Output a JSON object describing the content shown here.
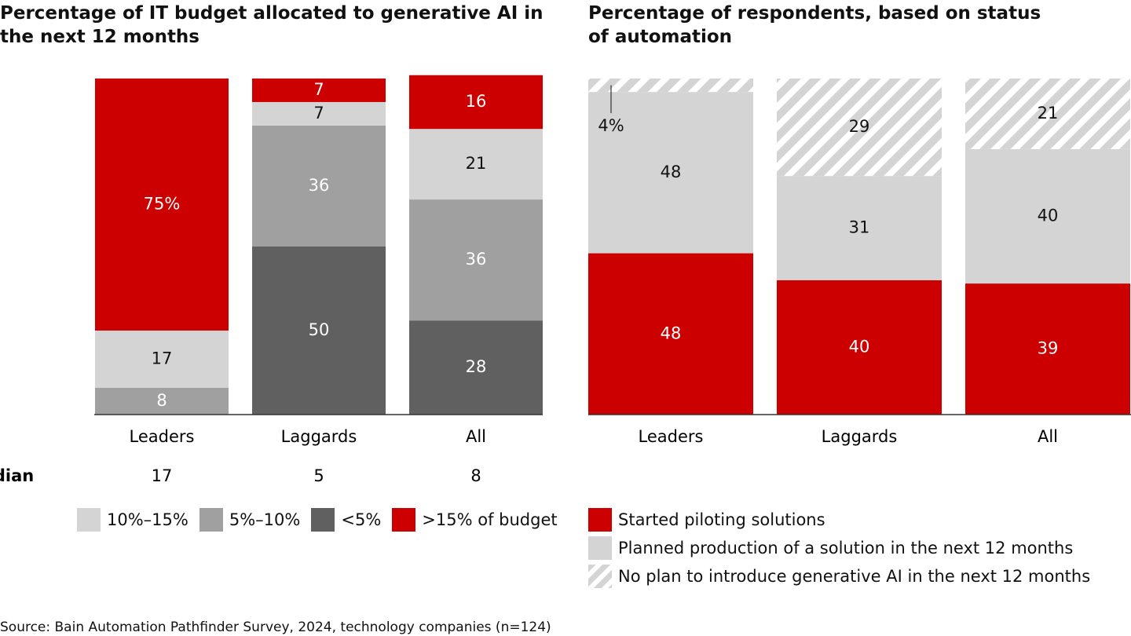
{
  "chart_data": [
    {
      "type": "bar",
      "stacked": true,
      "title": "Percentage of IT budget allocated to generative AI in the next 12 months",
      "categories": [
        "Leaders",
        "Laggards",
        "All"
      ],
      "ylim": [
        0,
        100
      ],
      "series": [
        {
          "name": "10%–15%",
          "color": "#d4d4d4",
          "values": [
            17,
            7,
            21
          ]
        },
        {
          "name": "5%–10%",
          "color": "#a0a0a0",
          "values": [
            8,
            36,
            36
          ]
        },
        {
          "name": "<5%",
          "color": "#606060",
          "values": [
            0,
            50,
            28
          ]
        },
        {
          "name": ">15% of budget",
          "color": "#cc0000",
          "values": [
            75,
            7,
            16
          ],
          "value_labels": [
            "75%",
            "7",
            "16"
          ]
        }
      ],
      "median": {
        "label": "Median",
        "values": [
          17,
          5,
          8
        ]
      }
    },
    {
      "type": "bar",
      "stacked": true,
      "title": "Percentage of respondents, based on status of automation",
      "categories": [
        "Leaders",
        "Laggards",
        "All"
      ],
      "ylim": [
        0,
        100
      ],
      "series": [
        {
          "name": "Started piloting solutions",
          "color": "#cc0000",
          "values": [
            48,
            40,
            39
          ]
        },
        {
          "name": "Planned production of a solution in the next 12 months",
          "color": "#d4d4d4",
          "values": [
            48,
            31,
            40
          ]
        },
        {
          "name": "No plan to introduce generative AI in the next 12 months",
          "color": "#d4d4d4",
          "pattern": "hatch",
          "values": [
            4,
            29,
            21
          ],
          "value_labels": [
            "4%",
            "29",
            "21"
          ]
        }
      ]
    }
  ],
  "source": "Source: Bain Automation Pathfinder Survey, 2024, technology companies (n=124)"
}
